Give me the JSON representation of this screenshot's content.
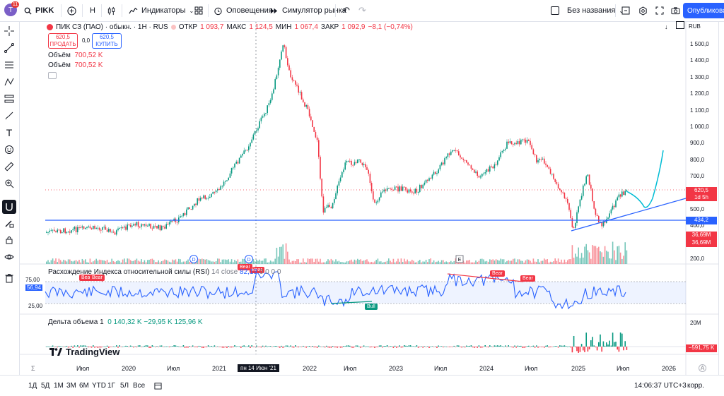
{
  "topbar": {
    "avatar_letter": "T",
    "avatar_badge": "11",
    "symbol": "PIKK",
    "interval": "H",
    "indicators_label": "Индикаторы",
    "alerts_label": "Оповещения",
    "replay_label": "Симулятор рынка",
    "layout_name": "Без названия",
    "publish_label": "Опубликовать"
  },
  "legend": {
    "title": "ПИК СЗ (ПАО) · обыкн. · 1Н · RUS",
    "open_label": "ОТКР",
    "open": "1 093,7",
    "high_label": "МАКС",
    "high": "1 124,5",
    "low_label": "МИН",
    "low": "1 067,4",
    "close_label": "ЗАКР",
    "close": "1 092,9",
    "change": "−8,1 (−0,74%)",
    "sell_price": "620,5",
    "sell_label": "ПРОДАТЬ",
    "spread": "0,0",
    "buy_price": "620,5",
    "buy_label": "КУПИТЬ",
    "vol1_label": "Объём",
    "vol1": "700,52 K",
    "vol2_label": "Объём",
    "vol2": "700,52 K",
    "currency": "RUB"
  },
  "price_axis": {
    "ticks": [
      "1 500,0",
      "1 400,0",
      "1 300,0",
      "1 200,0",
      "1 100,0",
      "1 000,0",
      "900,0",
      "800,0",
      "700,0",
      "600,0",
      "500,0",
      "400,0",
      "300,0",
      "200,0"
    ],
    "last_price": "620,5",
    "last_price_sub": "1d 5h",
    "level_price": "434,2",
    "vol_a": "36,69M",
    "vol_b": "36,69M"
  },
  "rsi": {
    "label": "Расхождение Индекса относительной силы (RSI)",
    "params": "14 close",
    "value": "82,13",
    "extra": "0 0 0 0",
    "current": "56,94",
    "level_75": "75,00",
    "level_25": "25,00",
    "tags": {
      "bear": "Bear",
      "bull": "Bull"
    }
  },
  "delta": {
    "label": "Дельта объема",
    "param": "1",
    "v1": "0",
    "v2": "140,32 K",
    "v3": "−29,95 K",
    "v4": "125,96 K",
    "axis_top": "20M",
    "current": "−591,75 K"
  },
  "markers": {
    "dividend": "D",
    "earnings": "E"
  },
  "time_axis": {
    "labels": [
      "Июл",
      "2020",
      "Июл",
      "2021",
      "2022",
      "Июл",
      "2023",
      "Июл",
      "2024",
      "Июл",
      "2025",
      "Июл",
      "2026"
    ],
    "crosshair": "пн 14 Июн '21"
  },
  "bottombar": {
    "ranges": [
      "1Д",
      "5Д",
      "1М",
      "3М",
      "6М",
      "YTD",
      "1Г",
      "5Л",
      "Все"
    ],
    "clock": "14:06:37 UTC+3",
    "adjust_label": "корр."
  },
  "watermark": "TradingView",
  "colors": {
    "up": "#089981",
    "down": "#f23645",
    "accent": "#2962ff",
    "forecast": "#00bcd4"
  }
}
